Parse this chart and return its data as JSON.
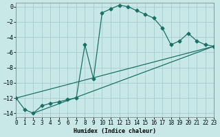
{
  "xlabel": "Humidex (Indice chaleur)",
  "background_color": "#c8e8e8",
  "grid_color": "#a8cccc",
  "line_color": "#1a7068",
  "xlim": [
    0,
    23
  ],
  "ylim": [
    -14.5,
    0.5
  ],
  "yticks": [
    0,
    -2,
    -4,
    -6,
    -8,
    -10,
    -12,
    -14
  ],
  "xticks": [
    0,
    1,
    2,
    3,
    4,
    5,
    6,
    7,
    8,
    9,
    10,
    11,
    12,
    13,
    14,
    15,
    16,
    17,
    18,
    19,
    20,
    21,
    22,
    23
  ],
  "main_x": [
    0,
    1,
    2,
    3,
    4,
    5,
    6,
    7,
    8,
    9,
    10,
    11,
    12,
    13,
    14,
    15,
    16,
    17,
    18,
    19,
    20,
    21,
    22,
    23
  ],
  "main_y": [
    -12.0,
    -13.5,
    -14.0,
    -13.0,
    -12.7,
    -12.5,
    -12.2,
    -12.0,
    -5.0,
    -9.5,
    -0.8,
    -0.3,
    0.2,
    0.0,
    -0.5,
    -1.0,
    -1.5,
    -2.8,
    -5.0,
    -4.5,
    -3.5,
    -4.5,
    -5.0,
    -5.2
  ],
  "line1_x": [
    2,
    23
  ],
  "line1_y": [
    -14.0,
    -5.2
  ],
  "line2_x": [
    0,
    23
  ],
  "line2_y": [
    -12.0,
    -5.2
  ]
}
